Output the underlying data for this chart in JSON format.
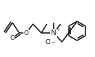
{
  "bg_color": "#ffffff",
  "line_color": "#1a1a1a",
  "lw": 1.2,
  "fs": 6.5,
  "figsize": [
    1.38,
    0.83
  ],
  "dpi": 100,
  "xlim": [
    0,
    138
  ],
  "ylim": [
    0,
    83
  ]
}
